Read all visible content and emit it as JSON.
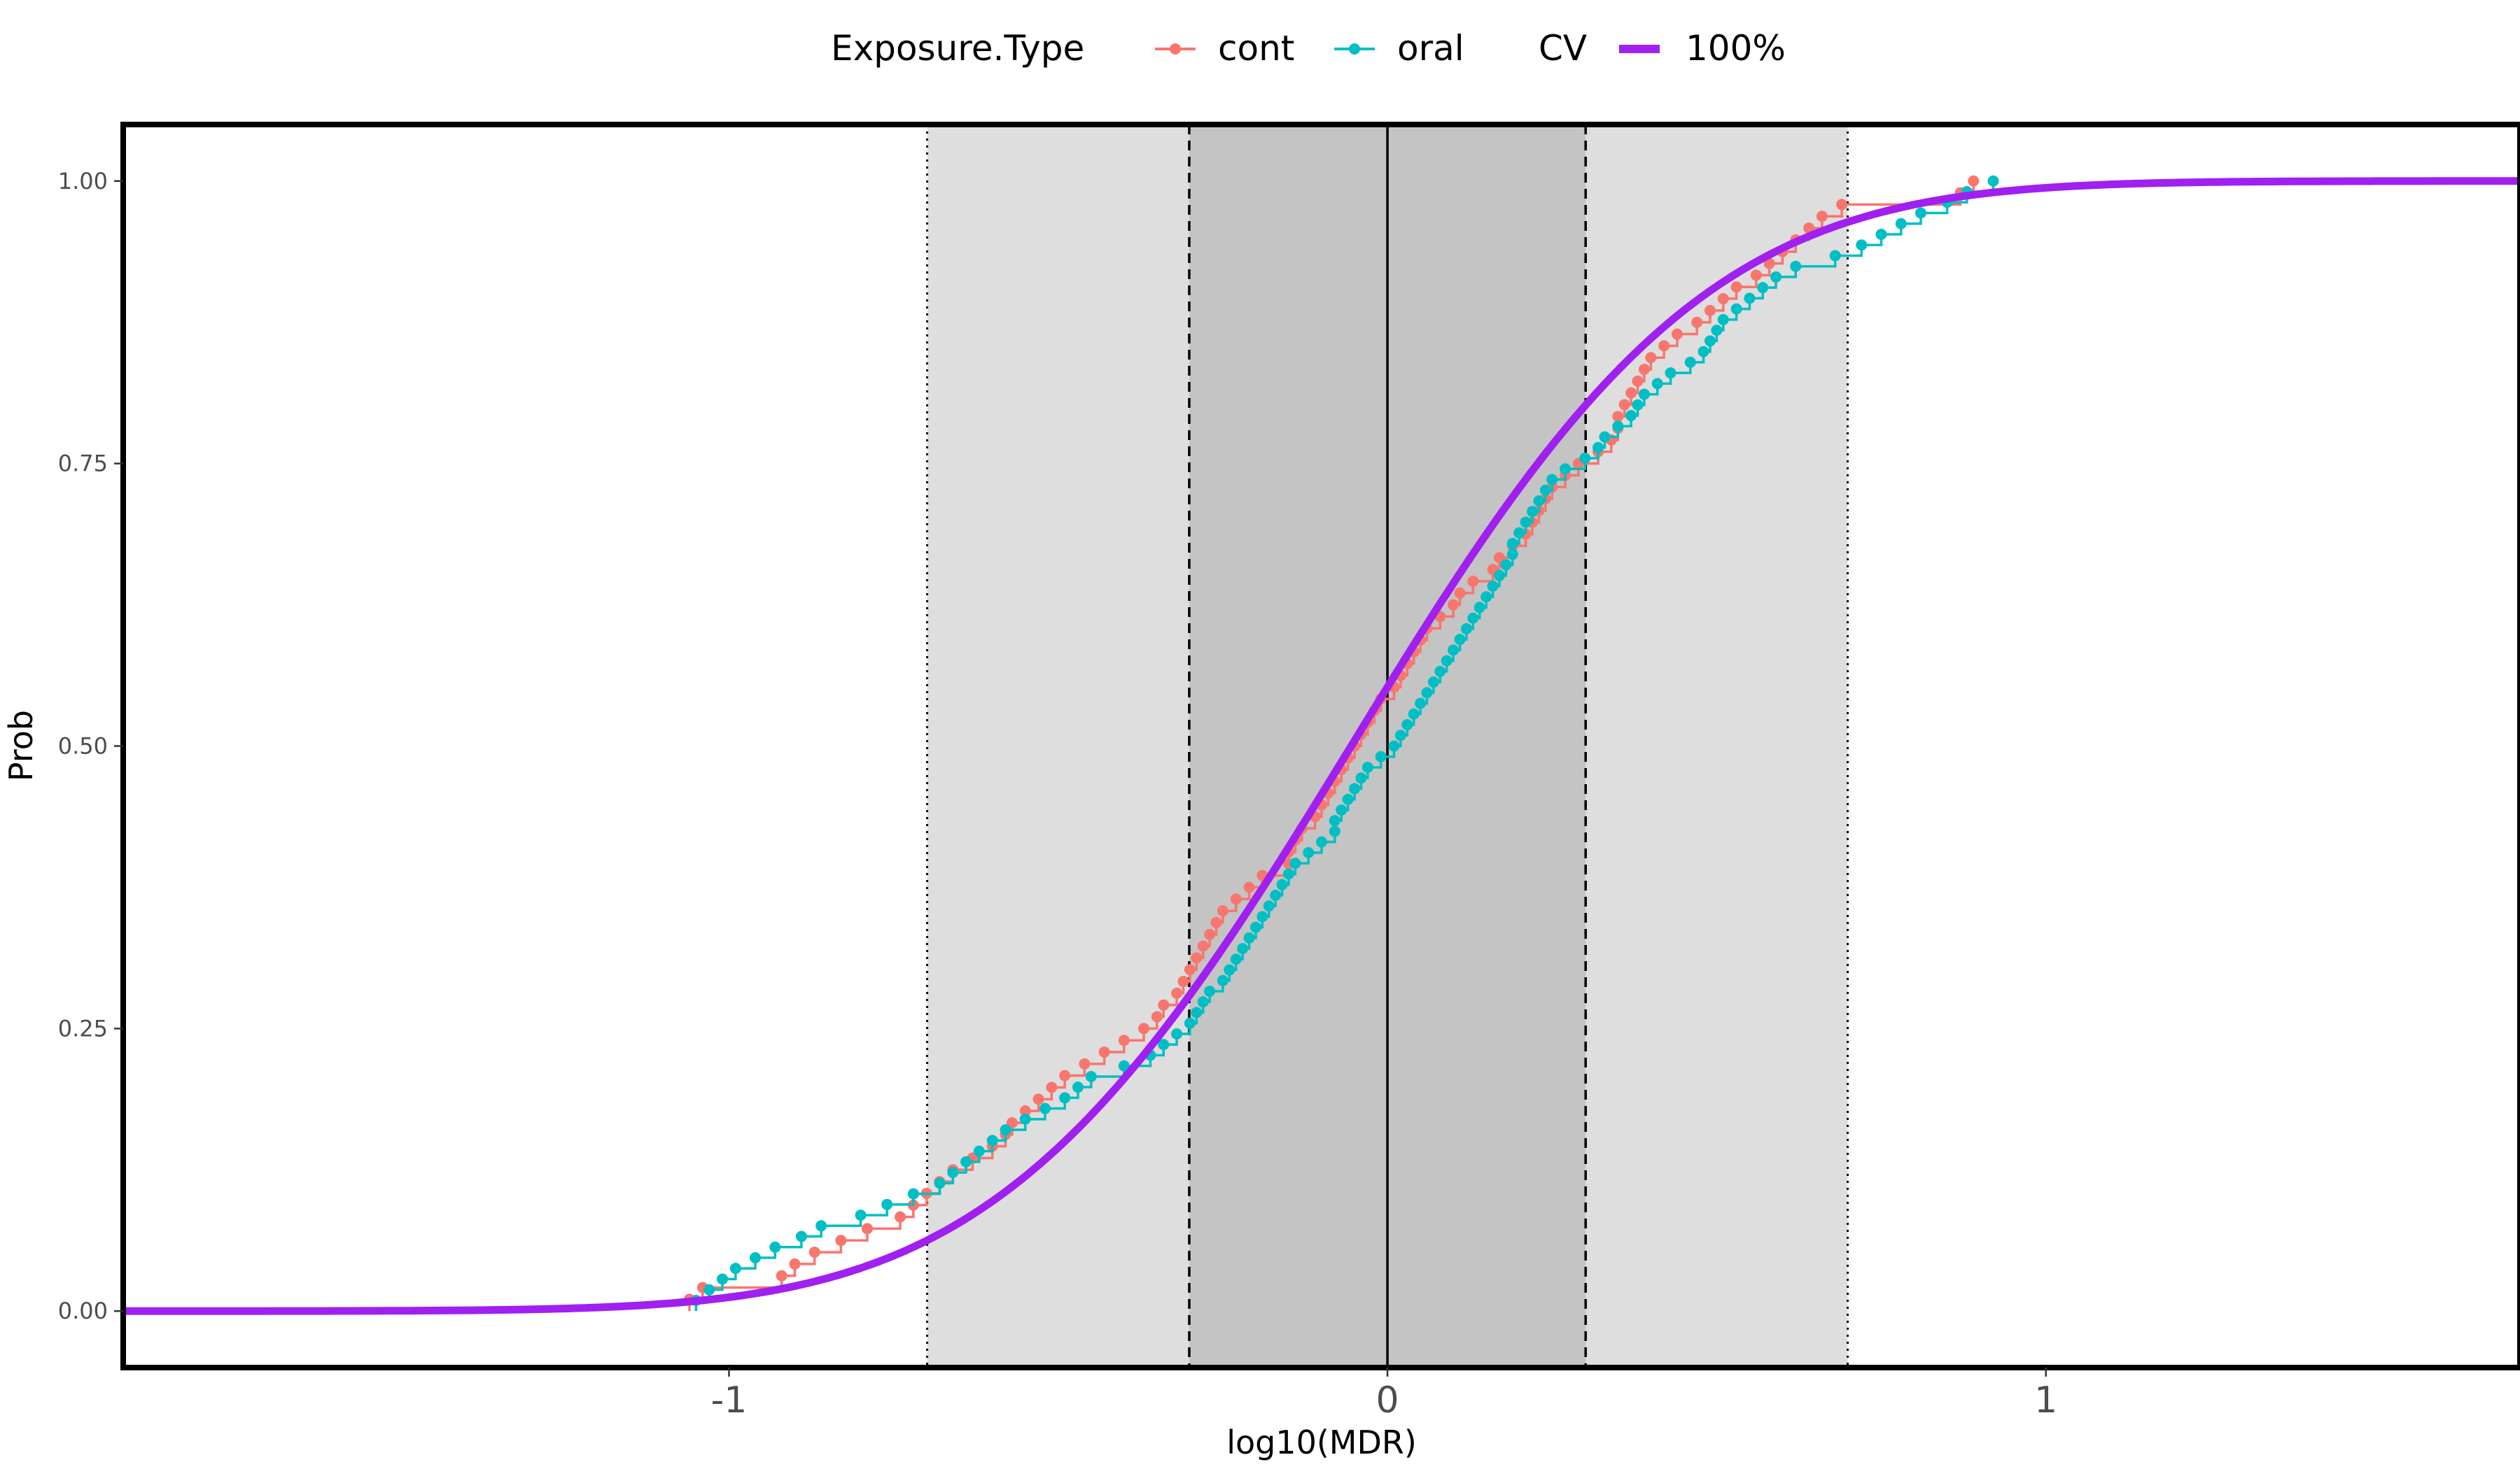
{
  "chart_data": {
    "type": "line",
    "title": "",
    "xlabel": "log10(MDR)",
    "ylabel": "Prob",
    "xlim": [
      -1.92,
      1.72
    ],
    "ylim": [
      -0.05,
      1.05
    ],
    "x_ticks": [
      {
        "value": -1,
        "label": "-1"
      },
      {
        "value": 0,
        "label": "0"
      },
      {
        "value": 1,
        "label": "1"
      }
    ],
    "y_ticks": [
      {
        "value": 0,
        "label": "0.00"
      },
      {
        "value": 0.25,
        "label": "0.25"
      },
      {
        "value": 0.5,
        "label": "0.50"
      },
      {
        "value": 0.75,
        "label": "0.75"
      },
      {
        "value": 1,
        "label": "1.00"
      }
    ],
    "grid": false,
    "bands": [
      {
        "from": -0.699,
        "to": 0.699,
        "fill": "#dedede"
      },
      {
        "from": -0.301,
        "to": 0.301,
        "fill": "#c4c4c4"
      }
    ],
    "vlines": [
      {
        "x": -0.699,
        "style": "dotted"
      },
      {
        "x": -0.301,
        "style": "dashed"
      },
      {
        "x": 0,
        "style": "solid"
      },
      {
        "x": 0.301,
        "style": "dashed"
      },
      {
        "x": 0.699,
        "style": "dotted"
      }
    ],
    "legend": {
      "position": "top",
      "groups": [
        {
          "title": "Exposure.Type",
          "entries": [
            {
              "label": "cont",
              "color": "#F8766D",
              "kind": "point-line"
            },
            {
              "label": "oral",
              "color": "#00BFC4",
              "kind": "point-line"
            }
          ]
        },
        {
          "title": "CV",
          "entries": [
            {
              "label": "100%",
              "color": "#A020F0",
              "kind": "thick-line"
            }
          ]
        }
      ]
    },
    "series": [
      {
        "name": "cont",
        "kind": "ecdf",
        "color": "#F8766D",
        "x": [
          -1.06,
          -1.04,
          -0.92,
          -0.9,
          -0.87,
          -0.83,
          -0.79,
          -0.74,
          -0.72,
          -0.7,
          -0.68,
          -0.66,
          -0.63,
          -0.6,
          -0.58,
          -0.57,
          -0.55,
          -0.53,
          -0.51,
          -0.49,
          -0.46,
          -0.43,
          -0.4,
          -0.37,
          -0.35,
          -0.34,
          -0.32,
          -0.31,
          -0.3,
          -0.29,
          -0.28,
          -0.27,
          -0.26,
          -0.25,
          -0.23,
          -0.21,
          -0.19,
          -0.15,
          -0.15,
          -0.14,
          -0.13,
          -0.11,
          -0.1,
          -0.09,
          -0.08,
          -0.07,
          -0.06,
          -0.05,
          -0.04,
          -0.03,
          -0.02,
          -0.01,
          0.01,
          0.02,
          0.03,
          0.04,
          0.05,
          0.06,
          0.08,
          0.1,
          0.11,
          0.13,
          0.16,
          0.17,
          0.19,
          0.21,
          0.22,
          0.23,
          0.24,
          0.25,
          0.27,
          0.29,
          0.32,
          0.34,
          0.35,
          0.35,
          0.36,
          0.37,
          0.38,
          0.39,
          0.4,
          0.42,
          0.44,
          0.47,
          0.49,
          0.51,
          0.53,
          0.56,
          0.58,
          0.6,
          0.62,
          0.64,
          0.66,
          0.69,
          0.87,
          0.89
        ]
      },
      {
        "name": "oral",
        "kind": "ecdf",
        "color": "#00BFC4",
        "x": [
          -1.05,
          -1.03,
          -1.01,
          -0.99,
          -0.96,
          -0.93,
          -0.89,
          -0.86,
          -0.8,
          -0.76,
          -0.72,
          -0.68,
          -0.66,
          -0.64,
          -0.62,
          -0.6,
          -0.58,
          -0.55,
          -0.52,
          -0.49,
          -0.47,
          -0.45,
          -0.4,
          -0.36,
          -0.34,
          -0.32,
          -0.3,
          -0.29,
          -0.28,
          -0.27,
          -0.25,
          -0.24,
          -0.23,
          -0.22,
          -0.21,
          -0.2,
          -0.19,
          -0.18,
          -0.17,
          -0.16,
          -0.15,
          -0.14,
          -0.12,
          -0.1,
          -0.08,
          -0.08,
          -0.07,
          -0.06,
          -0.05,
          -0.04,
          -0.03,
          -0.01,
          0.01,
          0.02,
          0.03,
          0.04,
          0.05,
          0.06,
          0.07,
          0.08,
          0.09,
          0.1,
          0.11,
          0.12,
          0.13,
          0.14,
          0.15,
          0.16,
          0.17,
          0.18,
          0.19,
          0.19,
          0.2,
          0.21,
          0.22,
          0.23,
          0.24,
          0.25,
          0.27,
          0.3,
          0.32,
          0.33,
          0.35,
          0.37,
          0.38,
          0.39,
          0.41,
          0.43,
          0.46,
          0.48,
          0.49,
          0.5,
          0.51,
          0.53,
          0.55,
          0.57,
          0.59,
          0.62,
          0.68,
          0.72,
          0.75,
          0.78,
          0.81,
          0.85,
          0.88,
          0.92
        ]
      },
      {
        "name": "100%",
        "kind": "normal-cdf",
        "color": "#A020F0",
        "mean": -0.055,
        "sd": 0.42
      }
    ]
  }
}
